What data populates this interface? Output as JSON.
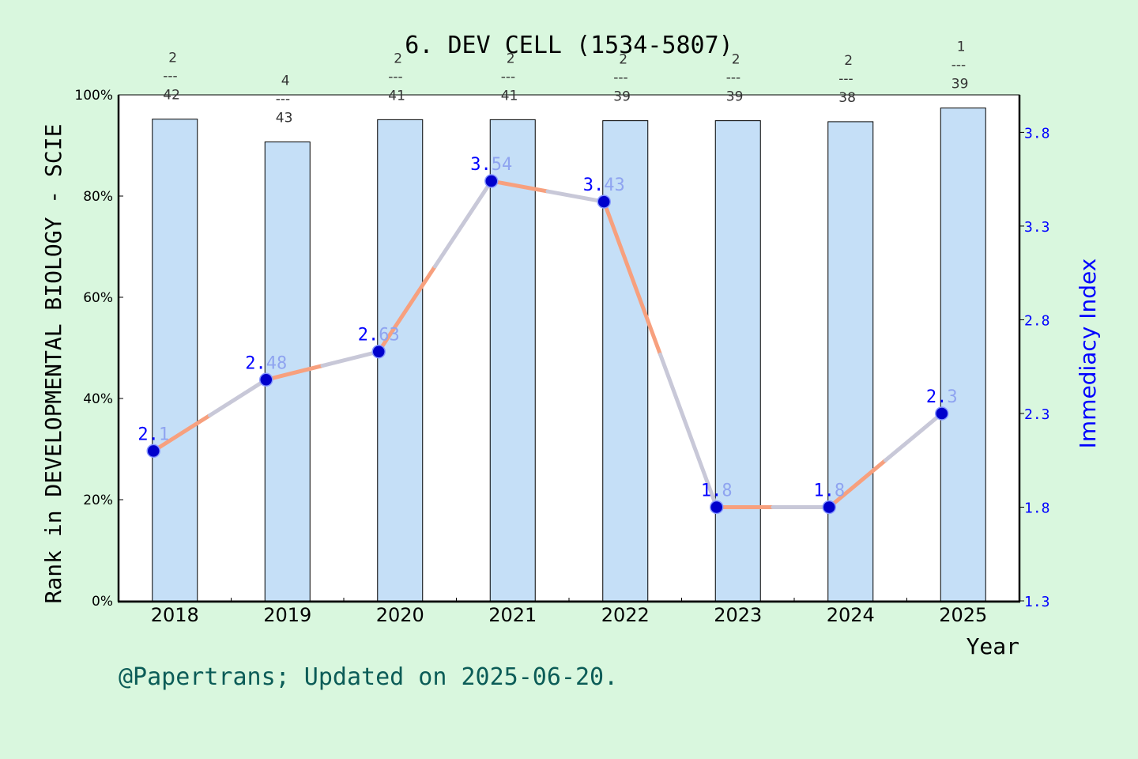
{
  "chart_data": {
    "type": "bar+line",
    "title": "6. DEV CELL (1534-5807)",
    "xlabel": "Year",
    "ylabel_left": "Rank in DEVELOPMENTAL BIOLOGY - SCIE",
    "ylabel_right": "Immediacy Index",
    "categories": [
      "2018",
      "2019",
      "2020",
      "2021",
      "2022",
      "2023",
      "2024",
      "2025"
    ],
    "y_left_ticks": [
      "0%",
      "20%",
      "40%",
      "60%",
      "80%",
      "100%"
    ],
    "y_left_lim": [
      0,
      100
    ],
    "y_right_ticks": [
      "1.3",
      "1.8",
      "2.3",
      "2.8",
      "3.3",
      "3.8"
    ],
    "y_right_lim": [
      1.3,
      4.0
    ],
    "bar_values_percent": [
      95.2,
      90.7,
      95.1,
      95.1,
      94.9,
      94.9,
      94.7,
      97.4
    ],
    "ranks": [
      {
        "rank": "2",
        "total": "42"
      },
      {
        "rank": "4",
        "total": "43"
      },
      {
        "rank": "2",
        "total": "41"
      },
      {
        "rank": "2",
        "total": "41"
      },
      {
        "rank": "2",
        "total": "39"
      },
      {
        "rank": "2",
        "total": "39"
      },
      {
        "rank": "2",
        "total": "38"
      },
      {
        "rank": "1",
        "total": "39"
      }
    ],
    "line_values": [
      2.1,
      2.48,
      2.63,
      3.54,
      3.43,
      1.8,
      1.8,
      2.3
    ],
    "line_labels": [
      "2.1",
      "2.48",
      "2.63",
      "3.54",
      "3.43",
      "1.8",
      "1.8",
      "2.3"
    ],
    "rank_dash": "---",
    "grid": false
  },
  "footer": "@Papertrans; Updated on 2025-06-20.",
  "colors": {
    "background": "#d9f7de",
    "plot_bg": "#ffffff",
    "bar_fill": "#c5dff7",
    "line_orange": "#f7a07e",
    "line_gray": "#c8c8d8",
    "marker": "#0000cc",
    "right_axis": "#0000ff",
    "footer": "#0b5c57"
  }
}
